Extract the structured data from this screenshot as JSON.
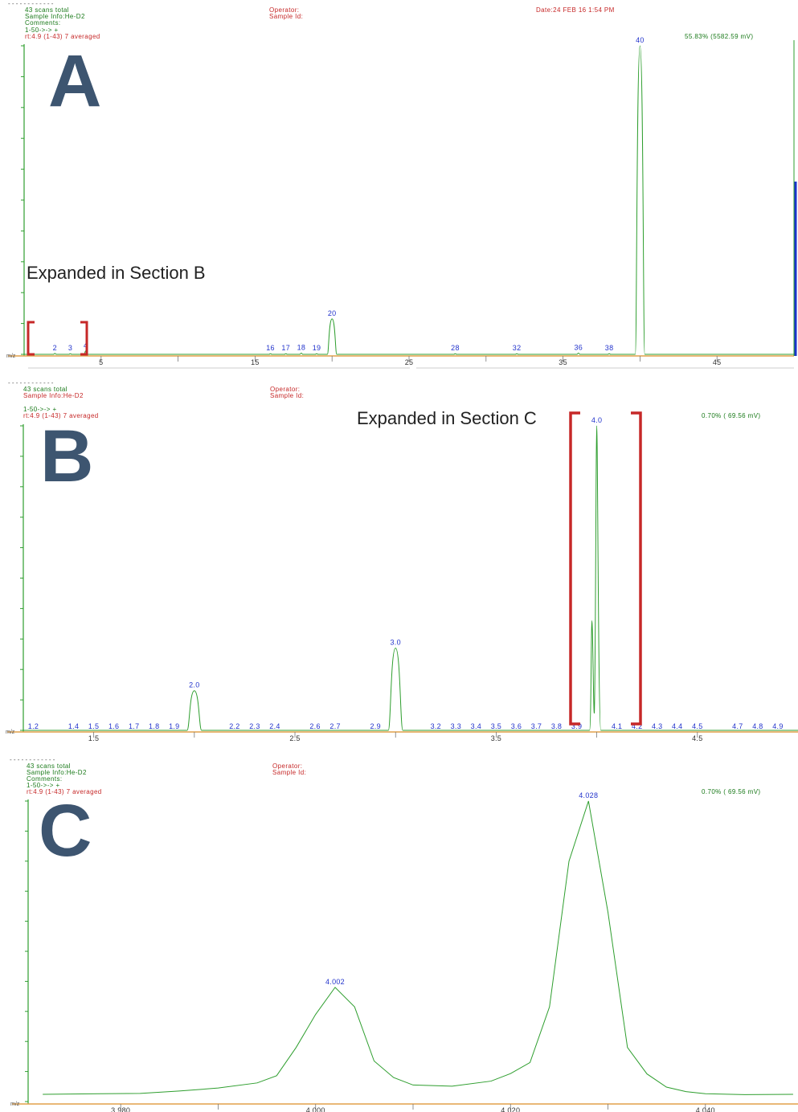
{
  "panel_a": {
    "letter": "A",
    "header": {
      "dash": "- - - - - - - - - - - -",
      "scans": "43 scans total",
      "sample": "Sample Info:He-D2",
      "comments": "Comments:",
      "range": "1-50->->  +",
      "rt": "rt:4.9 (1-43) 7 averaged",
      "operator": "Operator:",
      "sample_id": "Sample Id:",
      "date": "Date:24 FEB 16  1:54 PM",
      "scale": "55.83% (5582.59 mV)"
    },
    "callout": "Expanded in Section B",
    "colors": {
      "trace": "#2e9e2e",
      "bracket": "#c62828",
      "axis": "#e2a04a",
      "bar": "#1a33cc"
    }
  },
  "panel_b": {
    "letter": "B",
    "header": {
      "dash": "- - - - - - - - - - - -",
      "scans": "43 scans total",
      "sample": "Sample Info:He-D2",
      "range": "1-50->->  +",
      "rt": "rt:4.9 (1-43) 7 averaged",
      "operator": "Operator:",
      "sample_id": "Sample Id:",
      "scale": "0.70% (  69.56 mV)"
    },
    "callout": "Expanded in Section C"
  },
  "panel_c": {
    "letter": "C",
    "header": {
      "dash": "- - - - - - - - - - - -",
      "scans": "43 scans total",
      "sample": "Sample Info:He-D2",
      "comments": "Comments:",
      "range": "1-50->->  +",
      "rt": "rt:4.9 (1-43) 7 averaged",
      "operator": "Operator:",
      "sample_id": "Sample Id:",
      "scale": "0.70% (  69.56 mV)"
    }
  },
  "chart_data": [
    {
      "type": "line",
      "panel": "A",
      "xlabel": "m/z",
      "xlim": [
        0,
        50
      ],
      "ylim": [
        0,
        100
      ],
      "x_ticks": [
        5,
        15,
        25,
        35,
        45
      ],
      "minor_ticks": [
        10,
        20,
        30,
        40
      ],
      "peaks": [
        {
          "x": 2,
          "y": 0.3,
          "label": "2"
        },
        {
          "x": 3,
          "y": 0.2,
          "label": "3"
        },
        {
          "x": 4,
          "y": 1.1,
          "label": "4"
        },
        {
          "x": 16,
          "y": 0.2,
          "label": "16"
        },
        {
          "x": 17,
          "y": 0.2,
          "label": "17"
        },
        {
          "x": 18,
          "y": 0.4,
          "label": "18"
        },
        {
          "x": 19,
          "y": 0.2,
          "label": "19"
        },
        {
          "x": 20,
          "y": 11.5,
          "label": "20"
        },
        {
          "x": 28,
          "y": 0.2,
          "label": "28"
        },
        {
          "x": 32,
          "y": 0.2,
          "label": "32"
        },
        {
          "x": 36,
          "y": 0.4,
          "label": "36"
        },
        {
          "x": 38,
          "y": 0.2,
          "label": "38"
        },
        {
          "x": 40,
          "y": 100,
          "label": "40"
        }
      ]
    },
    {
      "type": "line",
      "panel": "B",
      "xlabel": "m/z",
      "xlim": [
        1.15,
        5.0
      ],
      "ylim": [
        0,
        100
      ],
      "x_ticks": [
        1.5,
        2.5,
        3.5,
        4.5
      ],
      "tick_labels": [
        "1.5",
        "2.5",
        "3.5",
        "4.5"
      ],
      "minor_ticks": [
        2.0,
        3.0,
        4.0
      ],
      "peaks": [
        {
          "x": 1.2,
          "y": 0.2,
          "label": "1.2"
        },
        {
          "x": 1.4,
          "y": 0.2,
          "label": "1.4"
        },
        {
          "x": 1.5,
          "y": 0.2,
          "label": "1.5"
        },
        {
          "x": 1.6,
          "y": 0.2,
          "label": "1.6"
        },
        {
          "x": 1.7,
          "y": 0.2,
          "label": "1.7"
        },
        {
          "x": 1.8,
          "y": 0.2,
          "label": "1.8"
        },
        {
          "x": 1.9,
          "y": 0.2,
          "label": "1.9"
        },
        {
          "x": 2.0,
          "y": 13,
          "label": "2.0"
        },
        {
          "x": 2.2,
          "y": 0.2,
          "label": "2.2"
        },
        {
          "x": 2.3,
          "y": 0.2,
          "label": "2.3"
        },
        {
          "x": 2.4,
          "y": 0.2,
          "label": "2.4"
        },
        {
          "x": 2.6,
          "y": 0.3,
          "label": "2.6"
        },
        {
          "x": 2.7,
          "y": 0.2,
          "label": "2.7"
        },
        {
          "x": 2.9,
          "y": 0.2,
          "label": "2.9"
        },
        {
          "x": 3.0,
          "y": 27,
          "label": "3.0"
        },
        {
          "x": 3.2,
          "y": 0.2,
          "label": "3.2"
        },
        {
          "x": 3.3,
          "y": 0.2,
          "label": "3.3"
        },
        {
          "x": 3.4,
          "y": 0.2,
          "label": "3.4"
        },
        {
          "x": 3.5,
          "y": 0.2,
          "label": "3.5"
        },
        {
          "x": 3.6,
          "y": 0.3,
          "label": "3.6"
        },
        {
          "x": 3.7,
          "y": 0.2,
          "label": "3.7"
        },
        {
          "x": 3.8,
          "y": 0.2,
          "label": "3.8"
        },
        {
          "x": 3.9,
          "y": 0.2,
          "label": "3.9"
        },
        {
          "x": 4.0,
          "y": 100,
          "label": "4.0"
        },
        {
          "x": 4.1,
          "y": 0.2,
          "label": "4.1"
        },
        {
          "x": 4.2,
          "y": 0.2,
          "label": "4.2"
        },
        {
          "x": 4.3,
          "y": 0.2,
          "label": "4.3"
        },
        {
          "x": 4.4,
          "y": 0.2,
          "label": "4.4"
        },
        {
          "x": 4.5,
          "y": 0.2,
          "label": "4.5"
        },
        {
          "x": 4.7,
          "y": 0.2,
          "label": "4.7"
        },
        {
          "x": 4.8,
          "y": 0.2,
          "label": "4.8"
        },
        {
          "x": 4.9,
          "y": 0.2,
          "label": "4.9"
        }
      ]
    },
    {
      "type": "line",
      "panel": "C",
      "xlabel": "m/z",
      "xlim": [
        3.9705,
        4.0495
      ],
      "ylim": [
        0,
        100
      ],
      "x_ticks": [
        3.98,
        4.0,
        4.02,
        4.04
      ],
      "tick_labels": [
        "3.980",
        "4.000",
        "4.020",
        "4.040"
      ],
      "minor_ticks": [
        3.99,
        4.01,
        4.03
      ],
      "peak_labels": [
        {
          "x": 4.002,
          "y": 38,
          "label": "4.002"
        },
        {
          "x": 4.028,
          "y": 100,
          "label": "4.028"
        }
      ],
      "x": [
        3.972,
        3.978,
        3.982,
        3.986,
        3.99,
        3.994,
        3.996,
        3.998,
        4.0,
        4.002,
        4.004,
        4.006,
        4.008,
        4.01,
        4.014,
        4.018,
        4.02,
        4.022,
        4.024,
        4.026,
        4.028,
        4.03,
        4.032,
        4.034,
        4.036,
        4.038,
        4.04,
        4.044,
        4.049
      ],
      "y": [
        2.4,
        2.6,
        2.7,
        3.5,
        4.5,
        6.2,
        8.6,
        18,
        29,
        38,
        31.5,
        13.5,
        8,
        5.5,
        5.1,
        6.8,
        9.3,
        13,
        31.5,
        80,
        100,
        63,
        18,
        9.2,
        4.8,
        3.3,
        2.6,
        2.3,
        2.4
      ]
    }
  ]
}
